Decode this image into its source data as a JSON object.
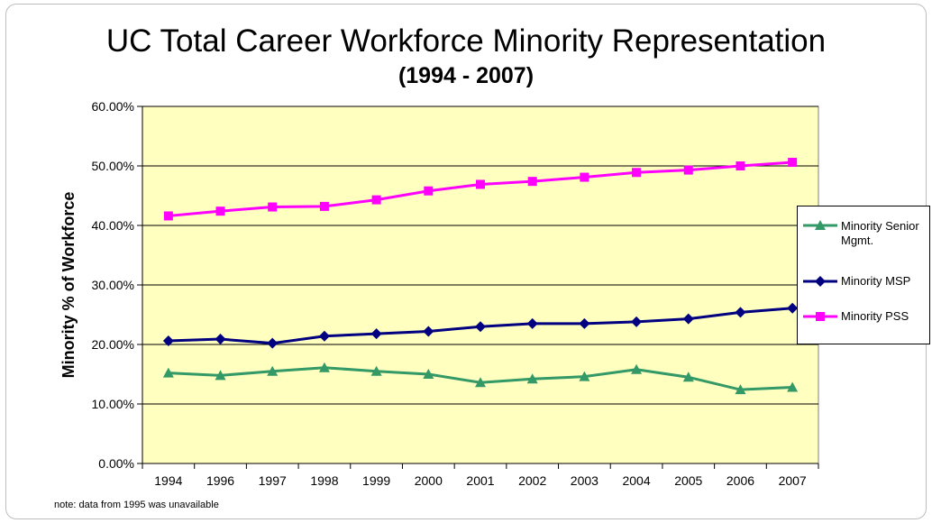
{
  "chart_data": {
    "type": "line",
    "title": "UC Total Career Workforce Minority Representation",
    "subtitle": "(1994 - 2007)",
    "ylabel": "Minority % of Workforce",
    "xlabel": "",
    "categories": [
      "1994",
      "1996",
      "1997",
      "1998",
      "1999",
      "2000",
      "2001",
      "2002",
      "2003",
      "2004",
      "2005",
      "2006",
      "2007"
    ],
    "ylim": [
      0,
      60
    ],
    "yticks": [
      0,
      10,
      20,
      30,
      40,
      50,
      60
    ],
    "ytick_labels": [
      "0.00%",
      "10.00%",
      "20.00%",
      "30.00%",
      "40.00%",
      "50.00%",
      "60.00%"
    ],
    "grid": true,
    "legend_position": "right",
    "plot_background": "#ffffc0",
    "series": [
      {
        "name": "Minority Senior Mgmt.",
        "color": "#339966",
        "marker": "triangle",
        "values": [
          15.2,
          14.8,
          15.5,
          16.1,
          15.5,
          15.0,
          13.6,
          14.2,
          14.6,
          15.8,
          14.5,
          12.4,
          12.8
        ]
      },
      {
        "name": "Minority MSP",
        "color": "#000080",
        "marker": "diamond",
        "values": [
          20.6,
          20.9,
          20.2,
          21.4,
          21.8,
          22.2,
          23.0,
          23.5,
          23.5,
          23.8,
          24.3,
          25.4,
          26.1
        ]
      },
      {
        "name": "Minority PSS",
        "color": "#ff00ff",
        "marker": "square",
        "values": [
          41.6,
          42.4,
          43.1,
          43.2,
          44.3,
          45.8,
          46.9,
          47.4,
          48.1,
          48.9,
          49.3,
          50.0,
          50.6
        ]
      }
    ],
    "note": "note:  data from 1995 was unavailable"
  }
}
